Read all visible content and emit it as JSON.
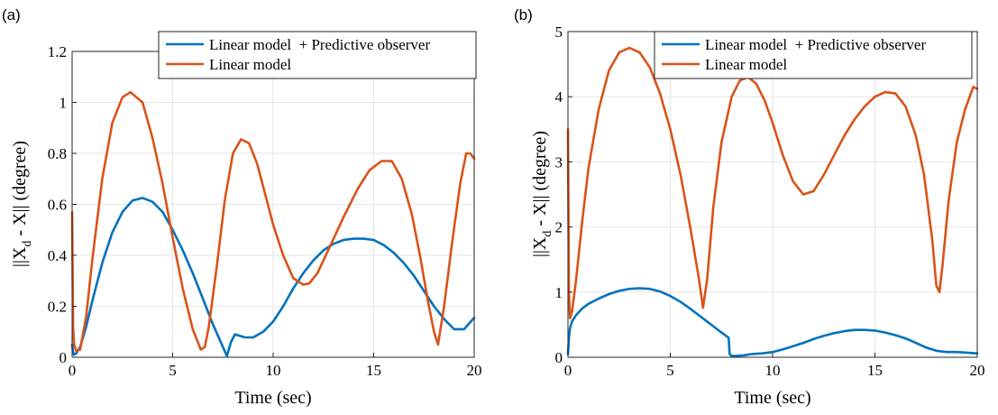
{
  "chart_data": [
    {
      "type": "line",
      "panel_label": "(a)",
      "xlabel": "Time (sec)",
      "ylabel": "||X_d - X|| (degree)",
      "xlim": [
        0,
        20
      ],
      "ylim": [
        0,
        1.2
      ],
      "xticks": [
        0,
        5,
        10,
        15,
        20
      ],
      "xtick_labels": [
        "0",
        "5",
        "10",
        "15",
        "20"
      ],
      "yticks": [
        0,
        0.2,
        0.4,
        0.6,
        0.8,
        1,
        1.2
      ],
      "ytick_labels": [
        "0",
        "0.2",
        "0.4",
        "0.6",
        "0.8",
        "1",
        "1.2"
      ],
      "grid": true,
      "legend_position": "top-right",
      "series": [
        {
          "name": "Linear model  + Predictive observer",
          "color": "#0072BD",
          "x": [
            0,
            0.05,
            0.1,
            0.2,
            0.4,
            0.7,
            1.0,
            1.5,
            2.0,
            2.5,
            3.0,
            3.5,
            4.0,
            4.5,
            5.0,
            5.5,
            6.0,
            6.5,
            7.0,
            7.5,
            7.7,
            7.9,
            8.1,
            8.3,
            8.6,
            9.0,
            9.5,
            10.0,
            10.5,
            11.0,
            11.5,
            12.0,
            12.5,
            13.0,
            13.5,
            14.0,
            14.5,
            15.0,
            15.5,
            16.0,
            16.5,
            17.0,
            17.5,
            18.0,
            18.5,
            19.0,
            19.5,
            20.0
          ],
          "y": [
            0.05,
            0.02,
            0.01,
            0.015,
            0.04,
            0.12,
            0.22,
            0.37,
            0.49,
            0.57,
            0.615,
            0.625,
            0.61,
            0.57,
            0.5,
            0.42,
            0.33,
            0.23,
            0.13,
            0.04,
            0.005,
            0.06,
            0.09,
            0.085,
            0.078,
            0.078,
            0.1,
            0.14,
            0.2,
            0.27,
            0.33,
            0.38,
            0.42,
            0.445,
            0.46,
            0.465,
            0.465,
            0.46,
            0.44,
            0.41,
            0.37,
            0.32,
            0.26,
            0.2,
            0.15,
            0.11,
            0.11,
            0.155
          ]
        },
        {
          "name": "Linear model",
          "color": "#D95319",
          "x": [
            0,
            0.05,
            0.1,
            0.2,
            0.4,
            0.7,
            1.0,
            1.5,
            2.0,
            2.5,
            2.9,
            3.5,
            4.0,
            4.5,
            5.0,
            5.5,
            6.0,
            6.4,
            6.6,
            6.8,
            7.2,
            7.6,
            8.0,
            8.4,
            8.8,
            9.2,
            9.6,
            10.0,
            10.5,
            11.0,
            11.5,
            11.8,
            12.2,
            12.8,
            13.5,
            14.2,
            14.8,
            15.4,
            15.9,
            16.4,
            16.9,
            17.3,
            17.7,
            18.0,
            18.2,
            18.5,
            18.9,
            19.3,
            19.6,
            19.8,
            20.0
          ],
          "y": [
            0.57,
            0.12,
            0.05,
            0.025,
            0.03,
            0.16,
            0.38,
            0.7,
            0.92,
            1.02,
            1.04,
            1.0,
            0.86,
            0.68,
            0.47,
            0.27,
            0.11,
            0.03,
            0.04,
            0.12,
            0.36,
            0.62,
            0.8,
            0.855,
            0.84,
            0.76,
            0.64,
            0.52,
            0.4,
            0.31,
            0.285,
            0.29,
            0.33,
            0.43,
            0.55,
            0.66,
            0.735,
            0.77,
            0.77,
            0.7,
            0.56,
            0.4,
            0.22,
            0.1,
            0.05,
            0.2,
            0.45,
            0.68,
            0.8,
            0.8,
            0.78
          ]
        }
      ]
    },
    {
      "type": "line",
      "panel_label": "(b)",
      "xlabel": "Time (sec)",
      "ylabel": "||X_d - X|| (degree)",
      "xlim": [
        0,
        20
      ],
      "ylim": [
        0,
        5
      ],
      "xticks": [
        0,
        5,
        10,
        15,
        20
      ],
      "xtick_labels": [
        "0",
        "5",
        "10",
        "15",
        "20"
      ],
      "yticks": [
        0,
        1,
        2,
        3,
        4,
        5
      ],
      "ytick_labels": [
        "0",
        "1",
        "2",
        "3",
        "4",
        "5"
      ],
      "grid": true,
      "legend_position": "top-right",
      "series": [
        {
          "name": "Linear model  + Predictive observer",
          "color": "#0072BD",
          "x": [
            0,
            0.05,
            0.1,
            0.2,
            0.4,
            0.7,
            1.0,
            1.5,
            2.0,
            2.5,
            3.0,
            3.5,
            4.0,
            4.5,
            5.0,
            5.5,
            6.0,
            6.5,
            7.0,
            7.5,
            7.85,
            7.9,
            8.0,
            8.2,
            8.6,
            9.0,
            9.5,
            10.0,
            10.5,
            11.0,
            11.5,
            12.0,
            12.5,
            13.0,
            13.5,
            14.0,
            14.5,
            15.0,
            15.5,
            16.0,
            16.5,
            17.0,
            17.5,
            18.0,
            18.5,
            19.0,
            19.5,
            20.0
          ],
          "y": [
            0.05,
            0.3,
            0.45,
            0.55,
            0.65,
            0.75,
            0.82,
            0.9,
            0.97,
            1.02,
            1.05,
            1.06,
            1.05,
            1.01,
            0.94,
            0.85,
            0.74,
            0.62,
            0.5,
            0.38,
            0.3,
            0.05,
            0.02,
            0.02,
            0.03,
            0.05,
            0.06,
            0.08,
            0.12,
            0.17,
            0.22,
            0.28,
            0.33,
            0.37,
            0.4,
            0.42,
            0.42,
            0.41,
            0.38,
            0.34,
            0.29,
            0.22,
            0.15,
            0.1,
            0.08,
            0.08,
            0.07,
            0.06
          ]
        },
        {
          "name": "Linear model",
          "color": "#D95319",
          "x": [
            0,
            0.05,
            0.1,
            0.2,
            0.4,
            0.7,
            1.0,
            1.5,
            2.0,
            2.5,
            3.0,
            3.5,
            4.0,
            4.5,
            5.0,
            5.5,
            6.0,
            6.4,
            6.6,
            6.8,
            7.1,
            7.5,
            8.0,
            8.4,
            8.8,
            9.2,
            9.6,
            10.0,
            10.5,
            11.0,
            11.5,
            12.0,
            12.5,
            13.0,
            13.5,
            14.0,
            14.5,
            15.0,
            15.5,
            16.0,
            16.5,
            17.0,
            17.4,
            17.8,
            18.0,
            18.15,
            18.3,
            18.6,
            19.0,
            19.4,
            19.8,
            20.0
          ],
          "y": [
            3.5,
            1.0,
            0.6,
            0.7,
            1.2,
            2.1,
            2.9,
            3.8,
            4.4,
            4.68,
            4.75,
            4.68,
            4.45,
            4.05,
            3.5,
            2.8,
            1.95,
            1.2,
            0.76,
            1.2,
            2.3,
            3.3,
            4.0,
            4.25,
            4.3,
            4.2,
            3.95,
            3.6,
            3.1,
            2.7,
            2.5,
            2.55,
            2.8,
            3.1,
            3.4,
            3.65,
            3.85,
            4.0,
            4.07,
            4.05,
            3.85,
            3.4,
            2.8,
            1.8,
            1.1,
            1.0,
            1.4,
            2.4,
            3.3,
            3.8,
            4.15,
            4.12
          ]
        }
      ]
    }
  ]
}
